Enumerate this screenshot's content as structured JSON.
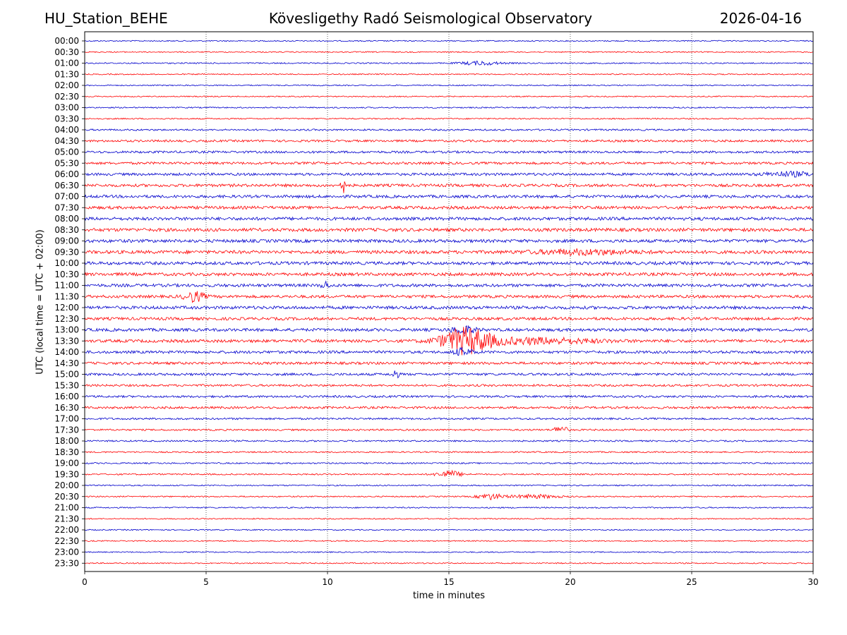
{
  "header": {
    "station": "HU_Station_BEHE",
    "observatory": "Kövesligethy Radó Seismological Observatory",
    "date": "2026-04-16"
  },
  "chart_data": {
    "type": "line",
    "xlabel": "time in minutes",
    "ylabel": "UTC (local time = UTC + 02:00)",
    "xlim": [
      0,
      30
    ],
    "xticks": [
      0,
      5,
      10,
      15,
      20,
      25,
      30
    ],
    "xtick_labels": [
      "0",
      "5",
      "10",
      "15",
      "20",
      "25",
      "30"
    ],
    "grid": "vertical dotted at x ticks",
    "row_labels": [
      "00:00",
      "00:30",
      "01:00",
      "01:30",
      "02:00",
      "02:30",
      "03:00",
      "03:30",
      "04:00",
      "04:30",
      "05:00",
      "05:30",
      "06:00",
      "06:30",
      "07:00",
      "07:30",
      "08:00",
      "08:30",
      "09:00",
      "09:30",
      "10:00",
      "10:30",
      "11:00",
      "11:30",
      "12:00",
      "12:30",
      "13:00",
      "13:30",
      "14:00",
      "14:30",
      "15:00",
      "15:30",
      "16:00",
      "16:30",
      "17:00",
      "17:30",
      "18:00",
      "18:30",
      "19:00",
      "19:30",
      "20:00",
      "20:30",
      "21:00",
      "21:30",
      "22:00",
      "22:30",
      "23:00",
      "23:30"
    ],
    "colors": [
      "#0000cc",
      "#ff0000"
    ],
    "noise_levels": [
      0.8,
      0.8,
      0.9,
      0.8,
      0.8,
      0.8,
      0.9,
      0.9,
      1.2,
      1.5,
      1.6,
      1.7,
      1.8,
      2.0,
      2.0,
      2.1,
      2.2,
      2.3,
      2.2,
      2.3,
      2.2,
      2.2,
      2.1,
      2.0,
      2.2,
      2.0,
      2.1,
      2.1,
      1.9,
      1.8,
      1.7,
      1.5,
      1.5,
      1.6,
      1.3,
      1.2,
      1.1,
      1.0,
      1.0,
      1.0,
      0.9,
      0.9,
      0.9,
      0.8,
      0.8,
      0.8,
      0.8,
      0.8
    ],
    "events": [
      {
        "row": 13,
        "center": 10.6,
        "width": 0.08,
        "amplitude": 22
      },
      {
        "row": 23,
        "center": 4.5,
        "width": 0.4,
        "amplitude": 7
      },
      {
        "row": 22,
        "center": 9.9,
        "width": 0.15,
        "amplitude": 5
      },
      {
        "row": 27,
        "center": 15.7,
        "width": 1.0,
        "amplitude": 18
      },
      {
        "row": 27,
        "center": 18.5,
        "width": 2.5,
        "amplitude": 4
      },
      {
        "row": 26,
        "center": 15.6,
        "width": 0.5,
        "amplitude": 5
      },
      {
        "row": 28,
        "center": 15.6,
        "width": 0.4,
        "amplitude": 5
      },
      {
        "row": 30,
        "center": 12.8,
        "width": 0.12,
        "amplitude": 7
      },
      {
        "row": 35,
        "center": 19.6,
        "width": 0.25,
        "amplitude": 6
      },
      {
        "row": 39,
        "center": 15.0,
        "width": 0.5,
        "amplitude": 5
      },
      {
        "row": 41,
        "center": 16.7,
        "width": 0.5,
        "amplitude": 4
      },
      {
        "row": 41,
        "center": 18.5,
        "width": 1.0,
        "amplitude": 2.5
      },
      {
        "row": 19,
        "center": 20.5,
        "width": 2.0,
        "amplitude": 3
      },
      {
        "row": 12,
        "center": 29.0,
        "width": 1.0,
        "amplitude": 3
      },
      {
        "row": 2,
        "center": 16.3,
        "width": 0.8,
        "amplitude": 2.5
      }
    ]
  }
}
